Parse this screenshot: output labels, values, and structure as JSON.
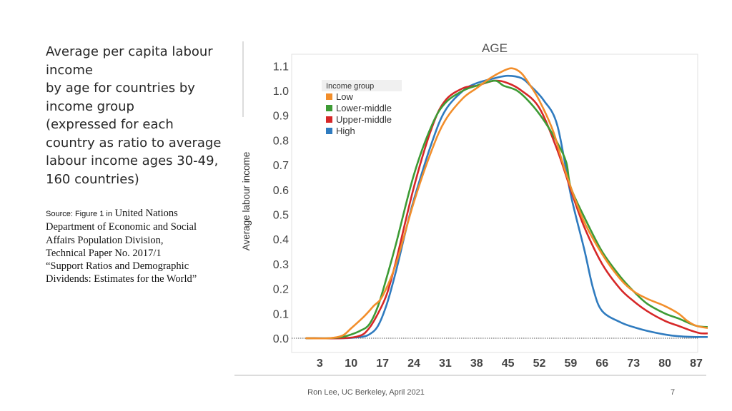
{
  "caption": {
    "lines": [
      "Average per capita labour",
      "income",
      "by age for countries by",
      "income group",
      "(expressed for each",
      "country as ratio to average",
      "labour income ages 30-49,",
      "160 countries)"
    ]
  },
  "source": {
    "prefix": "Source: Figure 1 in",
    "lines": [
      "United Nations",
      "Department of Economic and Social",
      "Affairs Population Division,",
      "Technical Paper No. 2017/1",
      "“Support Ratios and Demographic",
      "Dividends: Estimates for the World”"
    ]
  },
  "footer": {
    "credit": "Ron Lee, UC Berkeley, April 2021",
    "page": "7"
  },
  "colors": {
    "Low": "#f28e2b",
    "Lower-middle": "#3d9b35",
    "Upper-middle": "#d62728",
    "High": "#2f7bbf"
  },
  "chart_data": {
    "type": "line",
    "title": "AGE",
    "xlabel": "",
    "ylabel": "Average labour income",
    "xlim": [
      0,
      90
    ],
    "ylim": [
      0,
      1.1
    ],
    "x_ticks": [
      3,
      10,
      17,
      24,
      31,
      38,
      45,
      52,
      59,
      66,
      73,
      80,
      87
    ],
    "y_ticks": [
      0.0,
      0.1,
      0.2,
      0.3,
      0.4,
      0.5,
      0.6,
      0.7,
      0.8,
      0.9,
      1.0,
      1.1
    ],
    "reference_line_y": 0.0,
    "legend": {
      "title": "Income group",
      "position": "top-left"
    },
    "series": [
      {
        "name": "Low",
        "x": [
          0,
          5,
          8,
          10,
          13,
          15,
          17,
          20,
          24,
          28,
          31,
          35,
          38,
          41,
          44,
          46,
          48,
          50,
          52,
          55,
          57,
          59,
          62,
          66,
          70,
          73,
          76,
          80,
          83,
          85,
          87,
          90
        ],
        "y": [
          0,
          0,
          0.01,
          0.04,
          0.09,
          0.13,
          0.17,
          0.3,
          0.55,
          0.76,
          0.88,
          0.97,
          1.01,
          1.05,
          1.08,
          1.09,
          1.07,
          1.02,
          0.96,
          0.84,
          0.72,
          0.61,
          0.47,
          0.34,
          0.24,
          0.19,
          0.16,
          0.13,
          0.1,
          0.07,
          0.05,
          0.04
        ]
      },
      {
        "name": "Lower-middle",
        "x": [
          0,
          5,
          8,
          10,
          12,
          14,
          16,
          18,
          20,
          24,
          28,
          31,
          35,
          38,
          42,
          44,
          47,
          50,
          53,
          56,
          58,
          59,
          62,
          66,
          70,
          73,
          76,
          80,
          83,
          87,
          90
        ],
        "y": [
          0,
          0,
          0.005,
          0.015,
          0.03,
          0.055,
          0.13,
          0.25,
          0.38,
          0.66,
          0.86,
          0.95,
          1.0,
          1.02,
          1.04,
          1.02,
          1.0,
          0.95,
          0.88,
          0.79,
          0.71,
          0.61,
          0.49,
          0.35,
          0.25,
          0.19,
          0.14,
          0.1,
          0.08,
          0.05,
          0.045
        ]
      },
      {
        "name": "Upper-middle",
        "x": [
          0,
          8,
          12,
          14,
          16,
          18,
          20,
          24,
          28,
          31,
          35,
          38,
          42,
          45,
          48,
          52,
          56,
          59,
          62,
          66,
          70,
          73,
          76,
          80,
          83,
          86,
          88,
          90
        ],
        "y": [
          0,
          0,
          0.01,
          0.04,
          0.1,
          0.18,
          0.31,
          0.61,
          0.85,
          0.96,
          1.01,
          1.02,
          1.04,
          1.03,
          1.0,
          0.93,
          0.76,
          0.6,
          0.45,
          0.3,
          0.2,
          0.15,
          0.11,
          0.07,
          0.05,
          0.03,
          0.02,
          0.02
        ]
      },
      {
        "name": "High",
        "x": [
          0,
          8,
          12,
          14,
          16,
          18,
          20,
          22,
          24,
          28,
          31,
          35,
          38,
          42,
          45,
          48,
          50,
          53,
          56,
          59,
          62,
          64,
          66,
          70,
          73,
          76,
          80,
          83,
          87,
          90
        ],
        "y": [
          0,
          0,
          0.005,
          0.015,
          0.05,
          0.14,
          0.27,
          0.42,
          0.56,
          0.79,
          0.92,
          1.0,
          1.03,
          1.05,
          1.06,
          1.05,
          1.02,
          0.96,
          0.86,
          0.58,
          0.36,
          0.2,
          0.11,
          0.065,
          0.045,
          0.03,
          0.015,
          0.008,
          0.005,
          0.005
        ]
      }
    ]
  }
}
